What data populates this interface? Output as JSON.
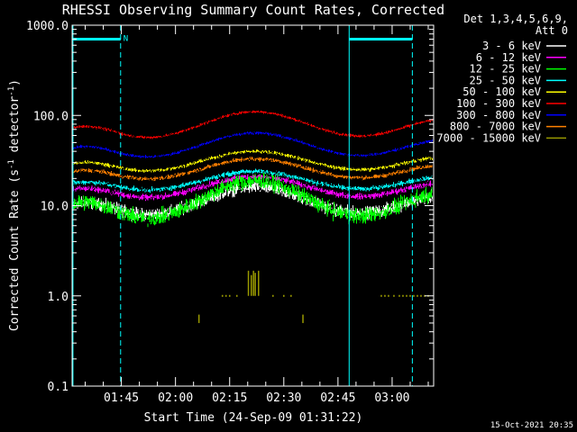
{
  "chart_data": {
    "type": "line",
    "title": "RHESSI Observing Summary Count Rates, Corrected",
    "xlabel": "Start Time (24-Sep-09 01:31:22)",
    "ylabel": "Corrected Count Rate (s^-1 detector^-1)",
    "ylabel_parts": [
      "Corrected Count Rate (s",
      "-1",
      " detector",
      "-1",
      ")"
    ],
    "y_scale": "log",
    "ylim": [
      0.1,
      1000
    ],
    "xlim_min": [
      91.37,
      191.5
    ],
    "x_unit": "minutes after 00:00 UT",
    "y_ticks": [
      {
        "v": 1000,
        "label": "1000.0"
      },
      {
        "v": 100,
        "label": "100.0"
      },
      {
        "v": 10,
        "label": "10.0"
      },
      {
        "v": 1,
        "label": "1.0"
      },
      {
        "v": 0.1,
        "label": "0.1"
      }
    ],
    "x_ticks": [
      {
        "v": 105,
        "label": "01:45"
      },
      {
        "v": 120,
        "label": "02:00"
      },
      {
        "v": 135,
        "label": "02:15"
      },
      {
        "v": 150,
        "label": "02:30"
      },
      {
        "v": 165,
        "label": "02:45"
      },
      {
        "v": 180,
        "label": "03:00"
      }
    ],
    "legend_header": [
      "Det 1,3,4,5,6,9,",
      "Att 0"
    ],
    "legend_position": "right",
    "series": [
      {
        "name": "3 - 6 keV",
        "color": "#ffffff",
        "min_val": 6.5,
        "peak_val": 16,
        "noise": 0.1
      },
      {
        "name": "6 - 12 keV",
        "color": "#ff00ff",
        "min_val": 10.5,
        "peak_val": 21,
        "noise": 0.05
      },
      {
        "name": "12 - 25 keV",
        "color": "#00ff00",
        "min_val": 5.5,
        "peak_val": 19,
        "noise": 0.13
      },
      {
        "name": "25 - 50 keV",
        "color": "#00ffff",
        "min_val": 13,
        "peak_val": 24,
        "noise": 0.04
      },
      {
        "name": "50 - 100 keV",
        "color": "#ffff00",
        "min_val": 21,
        "peak_val": 40,
        "noise": 0.03
      },
      {
        "name": "100 - 300 keV",
        "color": "#ff0000",
        "min_val": 47,
        "peak_val": 110,
        "noise": 0.025
      },
      {
        "name": "300 - 800 keV",
        "color": "#0000ff",
        "min_val": 29,
        "peak_val": 64,
        "noise": 0.025
      },
      {
        "name": "800 - 7000 keV",
        "color": "#ff8000",
        "min_val": 17,
        "peak_val": 33,
        "noise": 0.035
      },
      {
        "name": "7000 - 15000 keV",
        "color": "#999900",
        "min_val": null,
        "peak_val": null,
        "noise": 0
      }
    ],
    "peak_time_min": 142,
    "orbit_lines": [
      {
        "t": 91.6,
        "style": "solid"
      },
      {
        "t": 104.8,
        "style": "dashed"
      },
      {
        "t": 168.1,
        "style": "solid"
      },
      {
        "t": 185.6,
        "style": "dashed"
      }
    ],
    "observing_bars": [
      {
        "t0": 91.6,
        "t1": 104.8,
        "label": "N"
      },
      {
        "t0": 168.1,
        "t1": 185.6,
        "label": ""
      }
    ],
    "series_breaks": [
      [
        106.5,
        134.5
      ],
      [
        155.5,
        167.5
      ]
    ],
    "sparse_points": [
      {
        "t": 133.0,
        "v": 1.0
      },
      {
        "t": 134.0,
        "v": 1.0
      },
      {
        "t": 135.0,
        "v": 1.0
      },
      {
        "t": 137.0,
        "v": 1.0
      },
      {
        "t": 147.0,
        "v": 1.0
      },
      {
        "t": 150.0,
        "v": 1.0
      },
      {
        "t": 152.0,
        "v": 1.0
      },
      {
        "t": 177.0,
        "v": 1.0
      },
      {
        "t": 178.0,
        "v": 1.0
      },
      {
        "t": 179.0,
        "v": 1.0
      },
      {
        "t": 180.5,
        "v": 1.0
      },
      {
        "t": 182.0,
        "v": 1.0
      },
      {
        "t": 183.0,
        "v": 1.0
      },
      {
        "t": 184.0,
        "v": 1.0
      },
      {
        "t": 185.0,
        "v": 1.0
      },
      {
        "t": 186.0,
        "v": 1.0
      },
      {
        "t": 187.0,
        "v": 1.0
      },
      {
        "t": 188.0,
        "v": 1.0
      },
      {
        "t": 189.0,
        "v": 1.0
      },
      {
        "t": 190.0,
        "v": 1.0
      }
    ],
    "spike_lines": [
      {
        "t": 140.2,
        "v": 1.9
      },
      {
        "t": 141.0,
        "v": 1.7
      },
      {
        "t": 141.6,
        "v": 1.9
      },
      {
        "t": 142.1,
        "v": 1.8
      },
      {
        "t": 143.0,
        "v": 1.9
      },
      {
        "t": 126.5,
        "v": 0.62
      },
      {
        "t": 155.3,
        "v": 0.62
      }
    ],
    "footer_date": "15-Oct-2021 20:35"
  }
}
